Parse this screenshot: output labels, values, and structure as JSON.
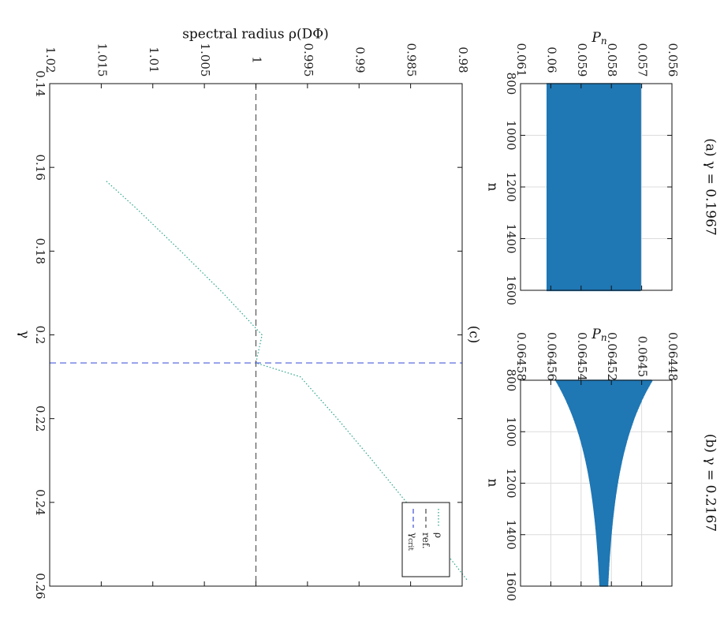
{
  "figure": {
    "panels": {
      "a": {
        "title": "(a) γ = 0.1967",
        "xlabel": "n",
        "ylabel": "P",
        "ylabel_sub": "n"
      },
      "b": {
        "title": "(b) γ = 0.2167",
        "xlabel": "n",
        "ylabel": "P",
        "ylabel_sub": "n"
      },
      "c": {
        "title": "(c)",
        "xlabel": "γ",
        "ylabel": "spectral radius ρ(DΦ)"
      }
    },
    "legend": {
      "entries": [
        {
          "label": "ρ",
          "style": "dotted",
          "color": "#2ca58d"
        },
        {
          "label": "ref.",
          "style": "dashed",
          "color": "#555555"
        },
        {
          "label": "γ",
          "label_sub": "crit",
          "style": "dashed",
          "color": "#4a5cdb"
        }
      ]
    },
    "orientation": "rotated 90° clockwise"
  },
  "chart_data": [
    {
      "id": "a",
      "type": "line",
      "title": "(a) γ = 0.1967",
      "xlabel": "n",
      "ylabel": "P_n",
      "xlim": [
        800,
        1600
      ],
      "ylim": [
        0.056,
        0.061
      ],
      "xticks": [
        800,
        1000,
        1200,
        1400,
        1600
      ],
      "yticks": [
        "0.056",
        "0.057",
        "0.058",
        "0.059",
        "0.06",
        "0.061"
      ],
      "grid": true,
      "series": [
        {
          "color": "#1f77b4",
          "n_start": 800,
          "n_end": 1600,
          "period": 2,
          "low": 0.05704,
          "high": 0.06012,
          "envelope": "constant"
        }
      ]
    },
    {
      "id": "b",
      "type": "line",
      "title": "(b) γ = 0.2167",
      "xlabel": "n",
      "ylabel": "P_n",
      "xlim": [
        800,
        1600
      ],
      "ylim": [
        0.06448,
        0.06458
      ],
      "xticks": [
        800,
        1000,
        1200,
        1400,
        1600
      ],
      "yticks": [
        "0.06448",
        "0.0645",
        "0.06452",
        "0.06454",
        "0.06456",
        "0.06458"
      ],
      "grid": true,
      "series": [
        {
          "color": "#1f77b4",
          "n_start": 800,
          "n_end": 1600,
          "period": 2,
          "center": 0.064525,
          "amp_start": 3.15e-05,
          "amp_end": 2.5e-06,
          "envelope": "decaying"
        }
      ]
    },
    {
      "id": "c",
      "type": "line",
      "title": "(c)",
      "xlabel": "γ",
      "ylabel": "spectral radius ρ(DΦ)",
      "xlim": [
        0.14,
        0.26
      ],
      "ylim": [
        0.98,
        1.02
      ],
      "xticks": [
        "0.14",
        "0.16",
        "0.18",
        "0.2",
        "0.22",
        "0.24",
        "0.26"
      ],
      "yticks": [
        "0.98",
        "0.985",
        "0.99",
        "0.995",
        "1",
        "1.005",
        "1.01",
        "1.015",
        "1.02"
      ],
      "grid": false,
      "legend_position": "bottom-right",
      "series": [
        {
          "name": "ρ",
          "style": "dotted",
          "color": "#2ca58d",
          "x": [
            0.1633,
            0.17,
            0.18,
            0.19,
            0.2,
            0.2067,
            0.21,
            0.22,
            0.23,
            0.24,
            0.2586
          ],
          "y": [
            1.0145,
            1.0115,
            1.0073,
            1.0032,
            0.9994,
            1.0,
            0.9957,
            0.9921,
            0.9887,
            0.9854,
            0.9795
          ]
        },
        {
          "name": "ref.",
          "style": "dashed",
          "color": "#555555",
          "hline": 1.0
        },
        {
          "name": "γ_crit",
          "style": "dashed",
          "color": "#4a5cdb",
          "vline": 0.2067
        }
      ]
    }
  ]
}
